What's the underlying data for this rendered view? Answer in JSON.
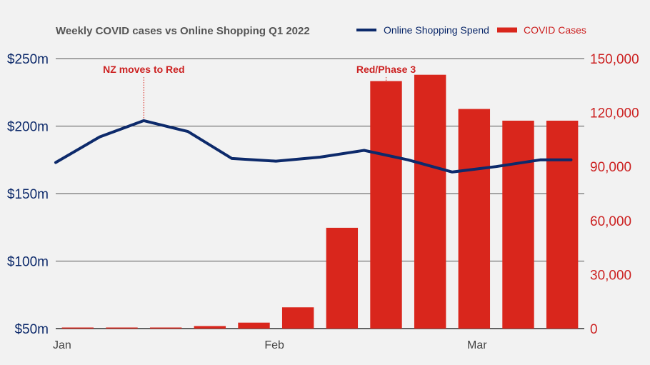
{
  "chart_data": {
    "type": "bar+line",
    "title": "Weekly COVID cases vs Online Shopping Q1 2022",
    "x_tick_labels": [
      {
        "label": "Jan",
        "week_index": 0
      },
      {
        "label": "Feb",
        "week_index": 5
      },
      {
        "label": "Mar",
        "week_index": 9.6
      }
    ],
    "weeks": 12,
    "legend": {
      "placement": "top-right",
      "line_label": "Online Shopping Spend",
      "bar_label": "COVID Cases"
    },
    "left_axis": {
      "min": 50,
      "max": 250,
      "ticks": [
        {
          "value": 250,
          "label": "$250m"
        },
        {
          "value": 200,
          "label": "$200m"
        },
        {
          "value": 150,
          "label": "$150m"
        },
        {
          "value": 100,
          "label": "$100m"
        },
        {
          "value": 50,
          "label": "$50m"
        }
      ]
    },
    "right_axis": {
      "min": 0,
      "max": 150000,
      "ticks": [
        {
          "value": 150000,
          "label": "150,000"
        },
        {
          "value": 120000,
          "label": "120,000"
        },
        {
          "value": 90000,
          "label": "90,000"
        },
        {
          "value": 60000,
          "label": "60,000"
        },
        {
          "value": 30000,
          "label": "30,000"
        },
        {
          "value": 0,
          "label": "0"
        }
      ]
    },
    "grid": true,
    "series": [
      {
        "name": "COVID Cases",
        "type": "bar",
        "axis": "right",
        "color": "#d9261c",
        "values": [
          300,
          300,
          300,
          1400,
          3300,
          11800,
          56000,
          137500,
          141000,
          122000,
          115500,
          115500
        ]
      },
      {
        "name": "Online Shopping Spend",
        "type": "line",
        "axis": "left",
        "color": "#0d2a6b",
        "x": [
          0,
          1,
          2,
          3,
          4,
          5,
          6,
          7,
          8,
          9,
          10,
          11,
          11.7
        ],
        "values": [
          173,
          192,
          204,
          196,
          176,
          174,
          177,
          182,
          175,
          166,
          170,
          175,
          175
        ]
      }
    ],
    "annotations": [
      {
        "text": "NZ moves to Red",
        "week_index": 2,
        "line_value": 204
      },
      {
        "text": "Red/Phase 3",
        "week_index": 7,
        "bar_value": 137500
      }
    ]
  }
}
